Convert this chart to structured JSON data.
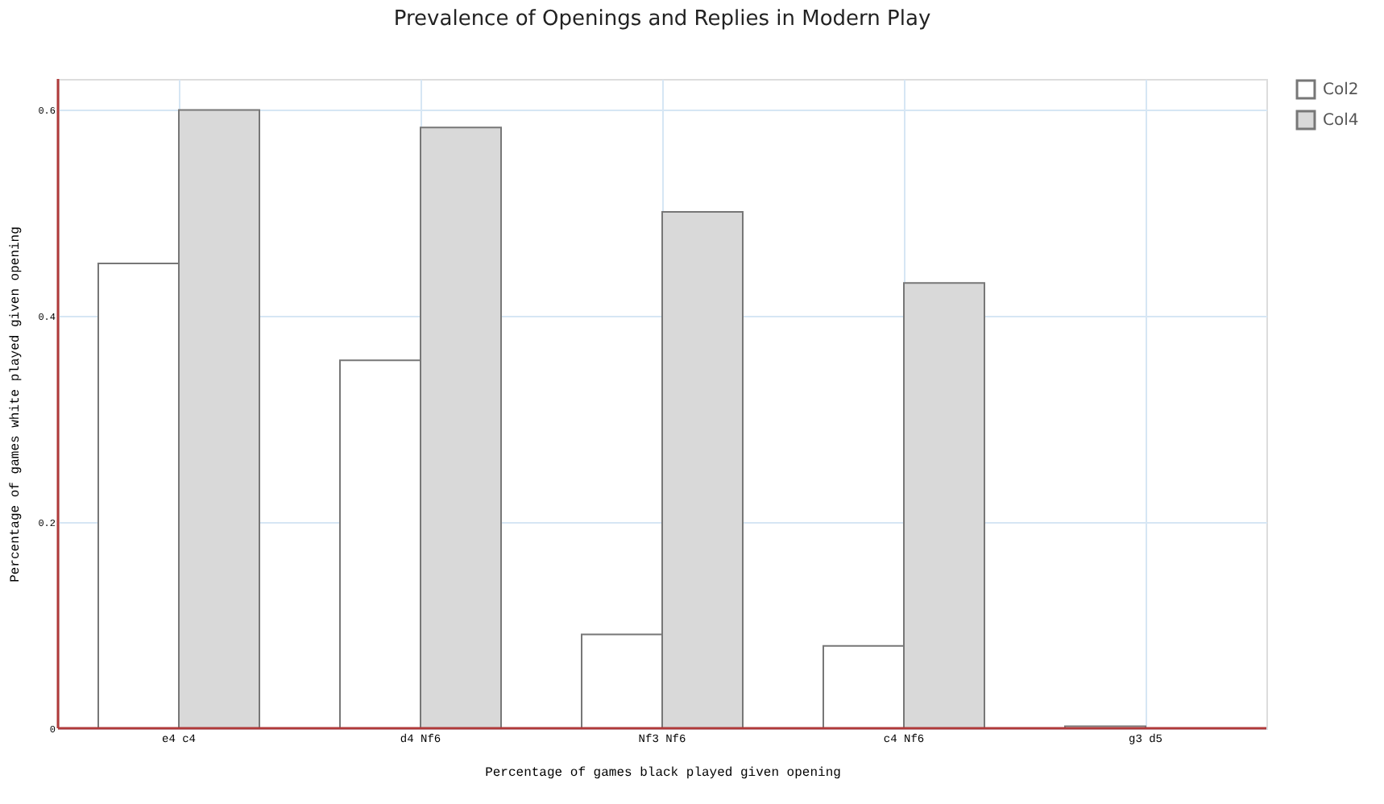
{
  "chart_data": {
    "type": "bar",
    "title": "Prevalence of Openings and Replies in Modern Play",
    "xlabel": "Percentage of games black played given opening",
    "ylabel": "Percentage of games white played given opening",
    "categories": [
      "e4 c4",
      "d4 Nf6",
      "Nf3 Nf6",
      "c4 Nf6",
      "g3 d5"
    ],
    "series": [
      {
        "name": "Col2",
        "color": "#ffffff",
        "values": [
          0.451,
          0.357,
          0.091,
          0.08,
          0.002
        ]
      },
      {
        "name": "Col4",
        "color": "#d9d9d9",
        "values": [
          0.6,
          0.583,
          0.501,
          0.432,
          null
        ]
      }
    ],
    "ylim": [
      0,
      0.63
    ],
    "yticks": [
      0,
      0.2,
      0.4,
      0.6
    ],
    "grid": true,
    "legend": "top right"
  }
}
